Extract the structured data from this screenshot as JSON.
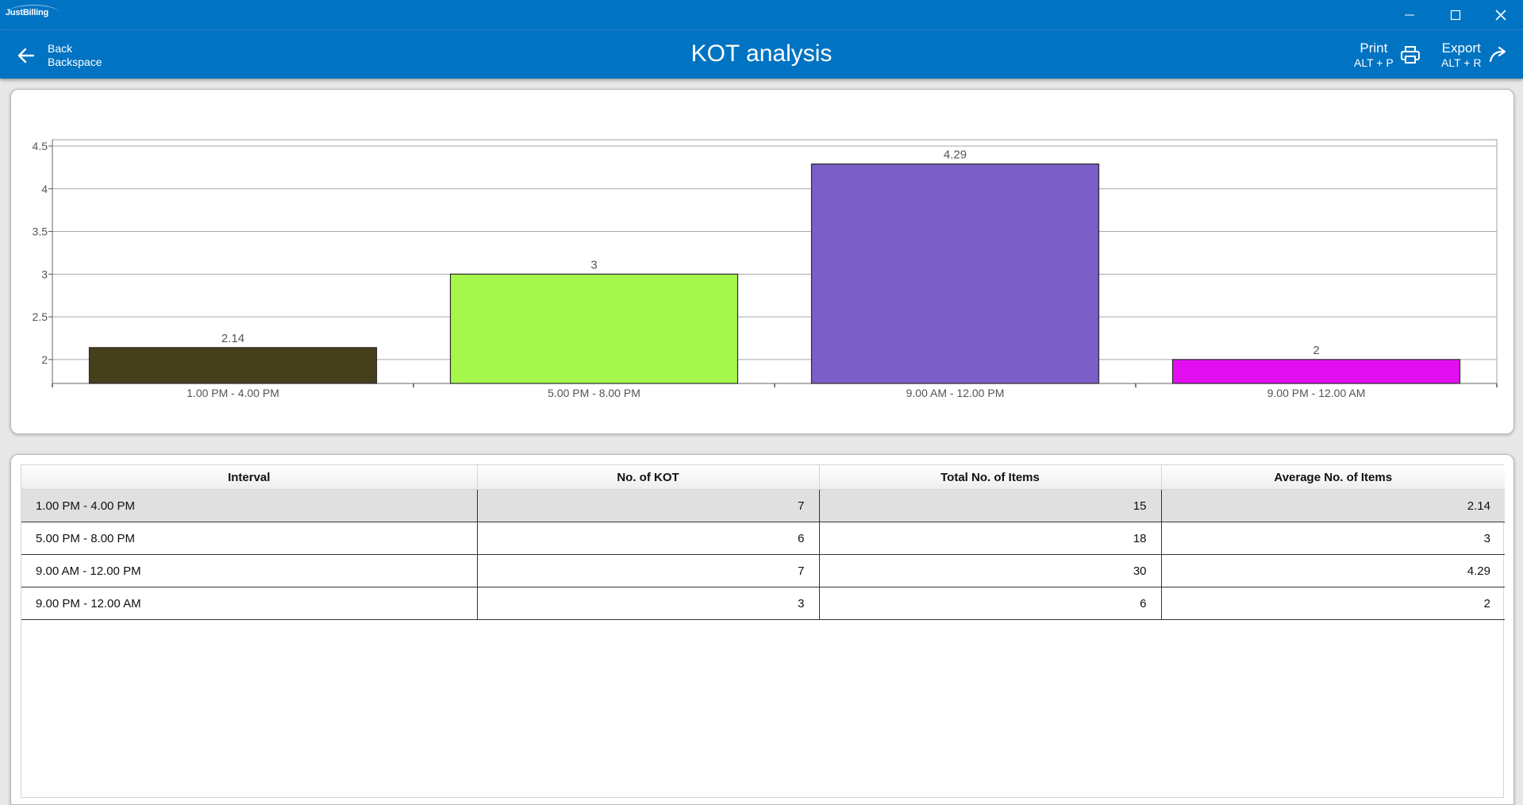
{
  "app": {
    "logo_text": "JustBilling"
  },
  "window": {
    "minimize": "—",
    "maximize": "☐",
    "close": "✕"
  },
  "header": {
    "back_label": "Back",
    "back_shortcut": "Backspace",
    "title": "KOT analysis",
    "print_label": "Print",
    "print_shortcut": "ALT + P",
    "export_label": "Export",
    "export_shortcut": "ALT + R"
  },
  "chart_data": {
    "type": "bar",
    "categories": [
      "1.00 PM - 4.00 PM",
      "5.00 PM - 8.00 PM",
      "9.00 AM - 12.00 PM",
      "9.00 PM - 12.00 AM"
    ],
    "values": [
      2.14,
      3,
      4.29,
      2
    ],
    "data_labels": [
      "2.14",
      "3",
      "4.29",
      "2"
    ],
    "colors": [
      "#453f1c",
      "#a6f74c",
      "#7b5ec6",
      "#e20ef0"
    ],
    "ylim": [
      1.72,
      4.5
    ],
    "yticks": [
      2,
      2.5,
      3,
      3.5,
      4,
      4.5
    ],
    "ytick_labels": [
      "2",
      "2.5",
      "3",
      "3.5",
      "4",
      "4.5"
    ],
    "grid": true,
    "title": "",
    "xlabel": "",
    "ylabel": ""
  },
  "table": {
    "columns": [
      "Interval",
      "No. of KOT",
      "Total No. of Items",
      "Average No. of Items"
    ],
    "rows": [
      [
        "1.00 PM - 4.00 PM",
        "7",
        "15",
        "2.14"
      ],
      [
        "5.00 PM - 8.00 PM",
        "6",
        "18",
        "3"
      ],
      [
        "9.00 AM - 12.00 PM",
        "7",
        "30",
        "4.29"
      ],
      [
        "9.00 PM - 12.00 AM",
        "3",
        "6",
        "2"
      ]
    ],
    "selected_row": 0
  }
}
